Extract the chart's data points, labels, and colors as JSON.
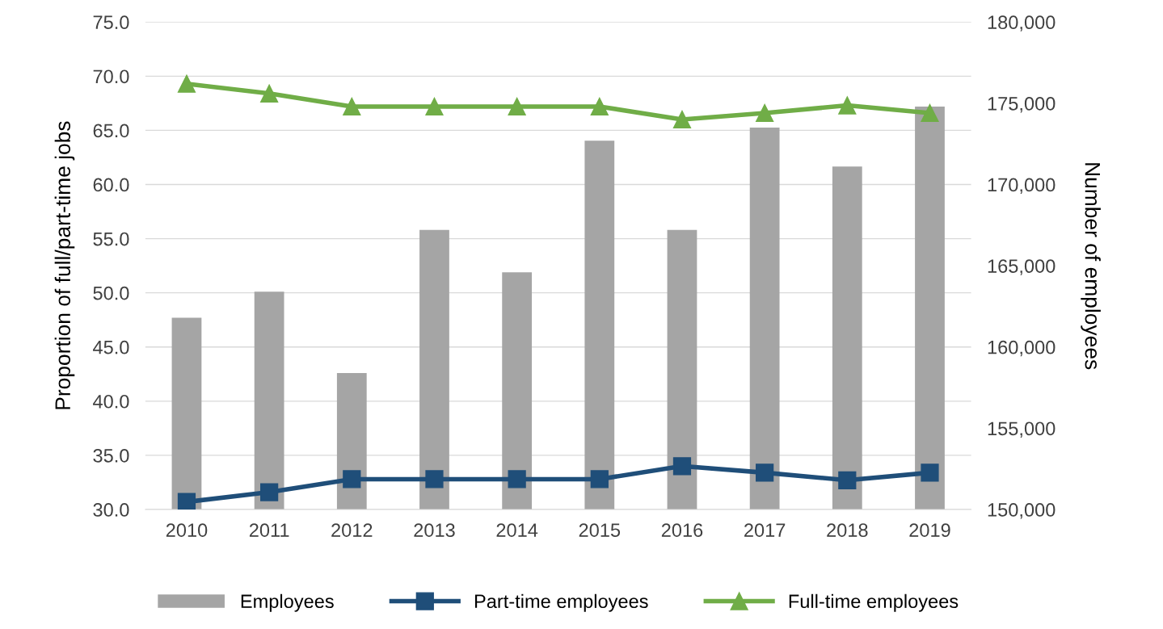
{
  "chart_data": {
    "type": "bar",
    "categories": [
      "2010",
      "2011",
      "2012",
      "2013",
      "2014",
      "2015",
      "2016",
      "2017",
      "2018",
      "2019"
    ],
    "ylabel": "Proportion of full/part-time jobs",
    "y2label": "Number of employees",
    "series": [
      {
        "name": "Employees",
        "axis": "y2",
        "color": "#a5a5a5",
        "values": [
          161800,
          163400,
          158400,
          167200,
          164600,
          172700,
          167200,
          173500,
          171100,
          174800
        ]
      },
      {
        "name": "Part-time employees",
        "type": "line",
        "color": "#1f4e79",
        "marker": "square",
        "values": [
          30.7,
          31.6,
          32.8,
          32.8,
          32.8,
          32.8,
          34.0,
          33.4,
          32.7,
          33.4
        ]
      },
      {
        "name": "Full-time employees",
        "type": "line",
        "color": "#70ad47",
        "marker": "triangle",
        "values": [
          69.3,
          68.4,
          67.2,
          67.2,
          67.2,
          67.2,
          66.0,
          66.6,
          67.3,
          66.6
        ]
      }
    ],
    "ylim": [
      30,
      75
    ],
    "yticks": [
      {
        "value": 30,
        "label": "30.0"
      },
      {
        "value": 35,
        "label": "35.0"
      },
      {
        "value": 40,
        "label": "40.0"
      },
      {
        "value": 45,
        "label": "45.0"
      },
      {
        "value": 50,
        "label": "50.0"
      },
      {
        "value": 55,
        "label": "55.0"
      },
      {
        "value": 60,
        "label": "60.0"
      },
      {
        "value": 65,
        "label": "65.0"
      },
      {
        "value": 70,
        "label": "70.0"
      },
      {
        "value": 75,
        "label": "75.0"
      }
    ],
    "y2lim": [
      150000,
      180000
    ],
    "y2ticks": [
      {
        "value": 150000,
        "label": "150,000"
      },
      {
        "value": 155000,
        "label": "155,000"
      },
      {
        "value": 160000,
        "label": "160,000"
      },
      {
        "value": 165000,
        "label": "165,000"
      },
      {
        "value": 170000,
        "label": "170,000"
      },
      {
        "value": 175000,
        "label": "175,000"
      },
      {
        "value": 180000,
        "label": "180,000"
      }
    ],
    "grid": "y",
    "legend": "bottom"
  }
}
